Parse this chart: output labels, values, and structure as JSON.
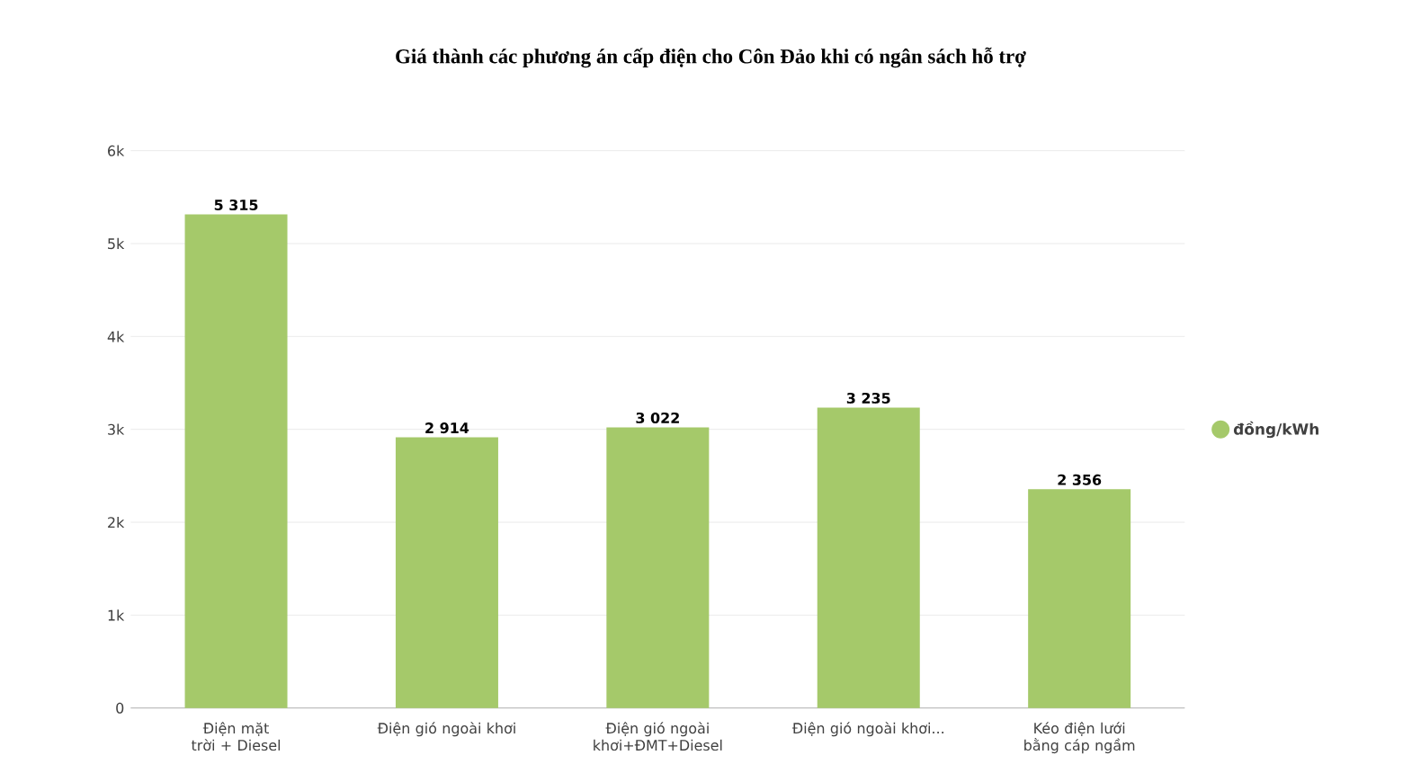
{
  "chart_data": {
    "type": "bar",
    "title": "Giá thành các phương án cấp điện cho Côn Đảo khi có ngân sách hỗ trợ",
    "categories": [
      "Điện mặt trời + Diesel",
      "Điện gió ngoài khơi",
      "Điện gió ngoài khơi+ĐMT+Diesel",
      "Điện gió ngoài khơi...",
      "Kéo điện lưới bằng cáp ngầm"
    ],
    "series": [
      {
        "name": "đồng/kWh",
        "color": "#a5c96a",
        "values": [
          5315,
          2914,
          3022,
          3235,
          2356
        ],
        "value_labels": [
          "5 315",
          "2 914",
          "3 022",
          "3 235",
          "2 356"
        ]
      }
    ],
    "ylim": [
      0,
      6000
    ],
    "yticks": [
      {
        "value": 0,
        "label": "0"
      },
      {
        "value": 1000,
        "label": "1k"
      },
      {
        "value": 2000,
        "label": "2k"
      },
      {
        "value": 3000,
        "label": "3k"
      },
      {
        "value": 4000,
        "label": "4k"
      },
      {
        "value": 5000,
        "label": "5k"
      },
      {
        "value": 6000,
        "label": "6k"
      }
    ],
    "grid": "y",
    "legend": "right"
  }
}
